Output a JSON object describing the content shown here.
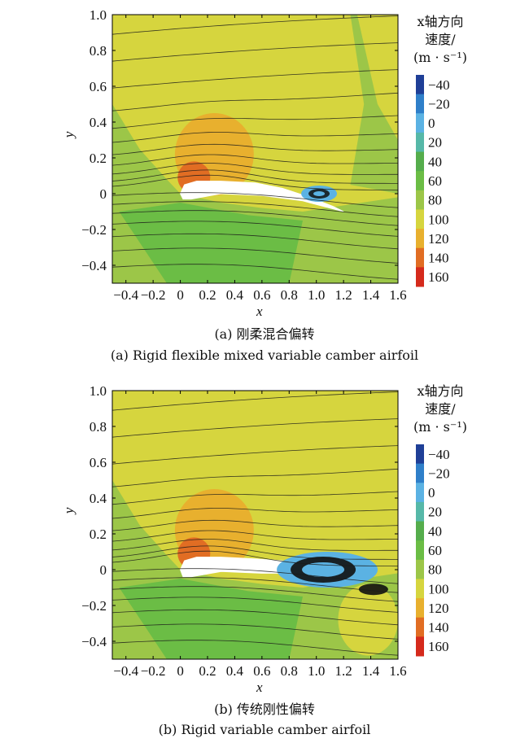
{
  "chart_data": [
    {
      "type": "heatmap",
      "panel": "a",
      "xlabel": "x",
      "ylabel": "y",
      "xlim": [
        -0.5,
        1.6
      ],
      "ylim": [
        -0.5,
        1.0
      ],
      "xticks": [
        "-0.4",
        "-0.2",
        "0",
        "0.2",
        "0.4",
        "0.6",
        "0.8",
        "1.0",
        "1.2",
        "1.4",
        "1.6"
      ],
      "yticks": [
        "1.0",
        "0.8",
        "0.6",
        "0.4",
        "0.2",
        "0",
        "-0.2",
        "-0.4"
      ],
      "colorbar": {
        "title_lines": [
          "x轴方向",
          "速度/",
          "(m · s⁻¹)"
        ],
        "labels": [
          "-40",
          "-20",
          "0",
          "20",
          "40",
          "60",
          "80",
          "100",
          "120",
          "140",
          "160"
        ],
        "colors": [
          "#1f3f97",
          "#2f7fc9",
          "#5bb2e3",
          "#56b8a8",
          "#55ad4c",
          "#6bbd45",
          "#9cc648",
          "#d6d53e",
          "#e8b02e",
          "#e16d23",
          "#d52a1c"
        ]
      },
      "caption_cn": "(a) 刚柔混合偏转",
      "caption_en": "(a) Rigid flexible mixed variable camber airfoil"
    },
    {
      "type": "heatmap",
      "panel": "b",
      "xlabel": "x",
      "ylabel": "y",
      "xlim": [
        -0.5,
        1.6
      ],
      "ylim": [
        -0.5,
        1.0
      ],
      "xticks": [
        "-0.4",
        "-0.2",
        "0",
        "0.2",
        "0.4",
        "0.6",
        "0.8",
        "1.0",
        "1.2",
        "1.4",
        "1.6"
      ],
      "yticks": [
        "1.0",
        "0.8",
        "0.6",
        "0.4",
        "0.2",
        "0",
        "-0.2",
        "-0.4"
      ],
      "colorbar": {
        "title_lines": [
          "x轴方向",
          "速度/",
          "(m · s⁻¹)"
        ],
        "labels": [
          "-40",
          "-20",
          "0",
          "20",
          "40",
          "60",
          "80",
          "100",
          "120",
          "140",
          "160"
        ],
        "colors": [
          "#1f3f97",
          "#2f7fc9",
          "#5bb2e3",
          "#56b8a8",
          "#55ad4c",
          "#6bbd45",
          "#9cc648",
          "#d6d53e",
          "#e8b02e",
          "#e16d23",
          "#d52a1c"
        ]
      },
      "caption_cn": "(b) 传统刚性偏转",
      "caption_en": "(b) Rigid variable camber airfoil"
    }
  ]
}
